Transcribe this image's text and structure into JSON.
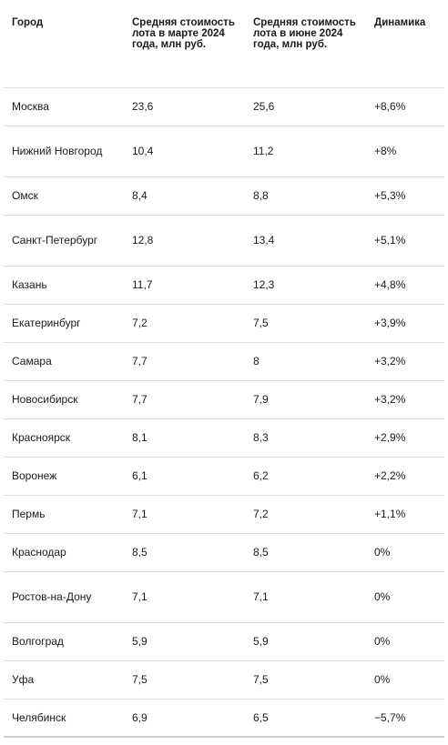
{
  "table": {
    "headers": [
      "Город",
      "Средняя стоимость лота в марте 2024 года, млн руб.",
      "Средняя стоимость лота в июне 2024 года, млн руб.",
      "Динамика"
    ],
    "rows": [
      {
        "city": "Москва",
        "march": "23,6",
        "june": "25,6",
        "change": "+8,6%"
      },
      {
        "city": "Нижний Новгород",
        "march": "10,4",
        "june": "11,2",
        "change": "+8%"
      },
      {
        "city": "Омск",
        "march": "8,4",
        "june": "8,8",
        "change": "+5,3%"
      },
      {
        "city": "Санкт-Петербург",
        "march": "12,8",
        "june": "13,4",
        "change": "+5,1%"
      },
      {
        "city": "Казань",
        "march": "11,7",
        "june": "12,3",
        "change": "+4,8%"
      },
      {
        "city": "Екатеринбург",
        "march": "7,2",
        "june": "7,5",
        "change": "+3,9%"
      },
      {
        "city": "Самара",
        "march": "7,7",
        "june": "8",
        "change": "+3,2%"
      },
      {
        "city": "Новосибирск",
        "march": "7,7",
        "june": "7,9",
        "change": "+3,2%"
      },
      {
        "city": "Красноярск",
        "march": "8,1",
        "june": "8,3",
        "change": "+2,9%"
      },
      {
        "city": "Воронеж",
        "march": "6,1",
        "june": "6,2",
        "change": "+2,2%"
      },
      {
        "city": "Пермь",
        "march": "7,1",
        "june": "7,2",
        "change": "+1,1%"
      },
      {
        "city": "Краснодар",
        "march": "8,5",
        "june": "8,5",
        "change": "0%"
      },
      {
        "city": "Ростов-на-Дону",
        "march": "7,1",
        "june": "7,1",
        "change": "0%"
      },
      {
        "city": "Волгоград",
        "march": "5,9",
        "june": "5,9",
        "change": "0%"
      },
      {
        "city": "Уфа",
        "march": "7,5",
        "june": "7,5",
        "change": "0%"
      },
      {
        "city": "Челябинск",
        "march": "6,9",
        "june": "6,5",
        "change": "−5,7%"
      }
    ]
  }
}
